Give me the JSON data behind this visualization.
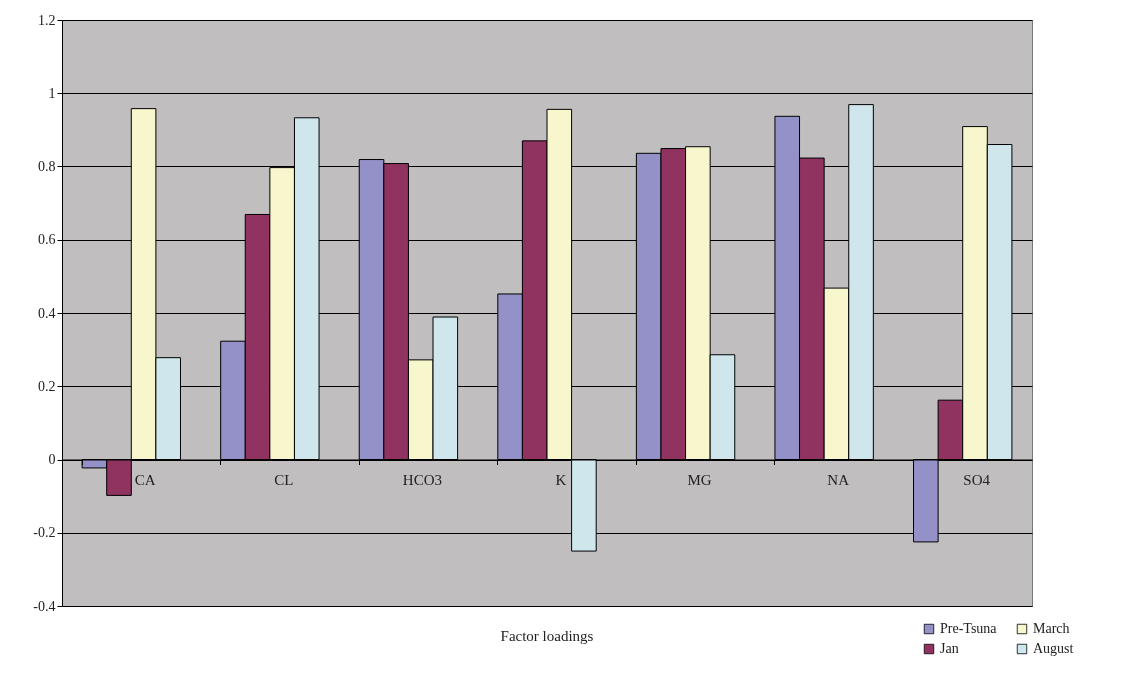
{
  "chart_data": {
    "type": "bar",
    "xlabel": "Factor loadings",
    "categories": [
      "CA",
      "CL",
      "HCO3",
      "K",
      "MG",
      "NA",
      "SO4"
    ],
    "series": [
      {
        "name": "Pre-Tsuna",
        "color": "#9490c8",
        "values": [
          -0.023,
          0.323,
          0.819,
          0.452,
          0.836,
          0.937,
          -0.225
        ]
      },
      {
        "name": "Jan",
        "color": "#913361",
        "values": [
          -0.098,
          0.669,
          0.808,
          0.87,
          0.849,
          0.823,
          0.162
        ]
      },
      {
        "name": "March",
        "color": "#f8f6cc",
        "values": [
          0.958,
          0.797,
          0.272,
          0.956,
          0.854,
          0.468,
          0.909
        ]
      },
      {
        "name": "August",
        "color": "#cfe7ec",
        "values": [
          0.278,
          0.933,
          0.389,
          -0.25,
          0.286,
          0.969,
          0.86
        ]
      }
    ],
    "ylim": [
      -0.4,
      1.2
    ],
    "yticks": [
      -0.4,
      -0.2,
      0,
      0.2,
      0.4,
      0.6,
      0.8,
      1,
      1.2
    ],
    "grid": "y",
    "legend": "bottom right"
  }
}
